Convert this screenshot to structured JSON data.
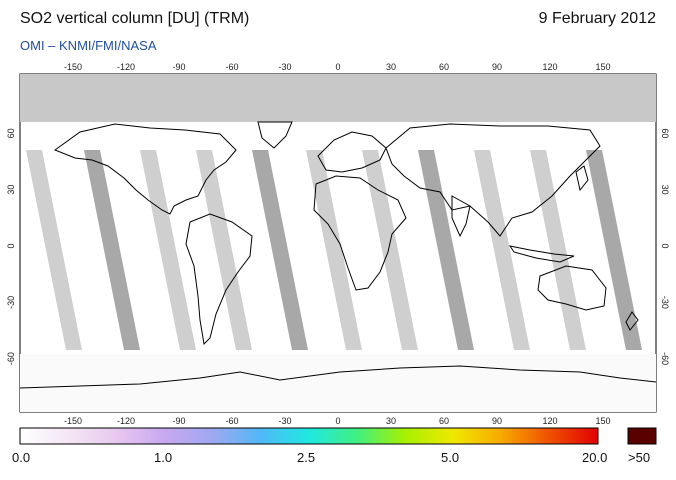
{
  "header": {
    "title": "SO2 vertical column [DU] (TRM)",
    "date": "9 February 2012",
    "source": "OMI  –  KNMI/FMI/NASA"
  },
  "map": {
    "lon_ticks": [
      -150,
      -120,
      -90,
      -60,
      -30,
      0,
      30,
      60,
      90,
      120,
      150
    ],
    "lat_ticks": [
      60,
      30,
      0,
      -30,
      -60
    ],
    "no_data_color": "#c8c8c8",
    "ocean_color": "#ffffff",
    "coast_color": "#000000"
  },
  "colorbar": {
    "labels": [
      "0.0",
      "1.0",
      "2.5",
      "5.0",
      "20.0"
    ],
    "overflow_label": ">50",
    "overflow_color": "#5a0000",
    "colors": [
      "#ffffff",
      "#f4e6f4",
      "#e8c8f0",
      "#c8a8f0",
      "#9ea8f0",
      "#50b8f8",
      "#20e8e0",
      "#40f080",
      "#a8f000",
      "#f0e800",
      "#f8a800",
      "#f05000",
      "#e00000"
    ]
  }
}
